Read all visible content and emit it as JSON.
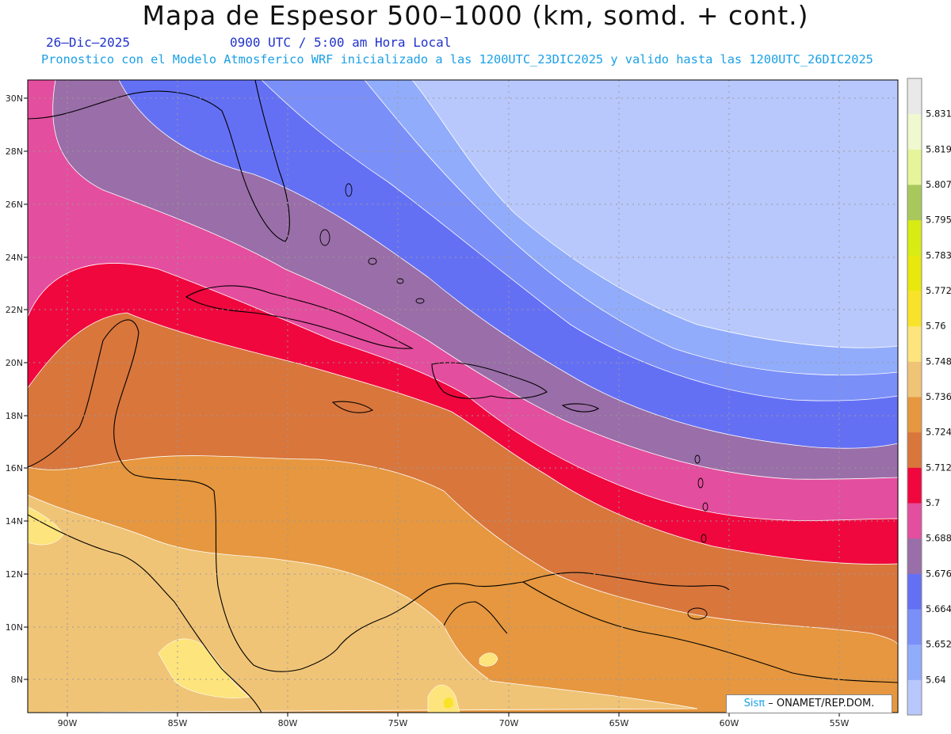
{
  "header": {
    "title": "Mapa de Espesor 500–1000 (km, somd. + cont.)",
    "date": "26–Dic–2025",
    "time": "0900 UTC / 5:00 am Hora Local",
    "description": "Pronostico con el Modelo Atmosferico WRF inicializado a las 1200UTC_23DIC2025 y valido hasta las  1200UTC_26DIC2025"
  },
  "map": {
    "region": "Caribe",
    "lon_range": [
      -92,
      -53
    ],
    "lat_range": [
      6.7,
      30.6
    ],
    "lon_ticks": [
      "90W",
      "85W",
      "80W",
      "75W",
      "70W",
      "65W",
      "60W",
      "55W"
    ],
    "lat_ticks": [
      "30N",
      "28N",
      "26N",
      "24N",
      "22N",
      "20N",
      "18N",
      "16N",
      "14N",
      "12N",
      "10N",
      "8N"
    ]
  },
  "legend": {
    "levels": [
      "5.64",
      "5.652",
      "5.664",
      "5.676",
      "5.688",
      "5.7",
      "5.712",
      "5.724",
      "5.736",
      "5.748",
      "5.76",
      "5.772",
      "5.783",
      "5.795",
      "5.807",
      "5.819",
      "5.831"
    ],
    "colors": [
      "#b8c8fc",
      "#92acfc",
      "#7b8ff8",
      "#6470f4",
      "#9a6ea8",
      "#e44e9e",
      "#f0073e",
      "#d9763c",
      "#e6973f",
      "#f0c477",
      "#fde47c",
      "#f9e32a",
      "#e9e80c",
      "#d8ec14",
      "#a8c85c",
      "#e6f59a",
      "#f0f8d0",
      "#e9e9e9"
    ]
  },
  "credit": {
    "brand": "Sisπ",
    "org": "– ONAMET/REP.DOM."
  }
}
